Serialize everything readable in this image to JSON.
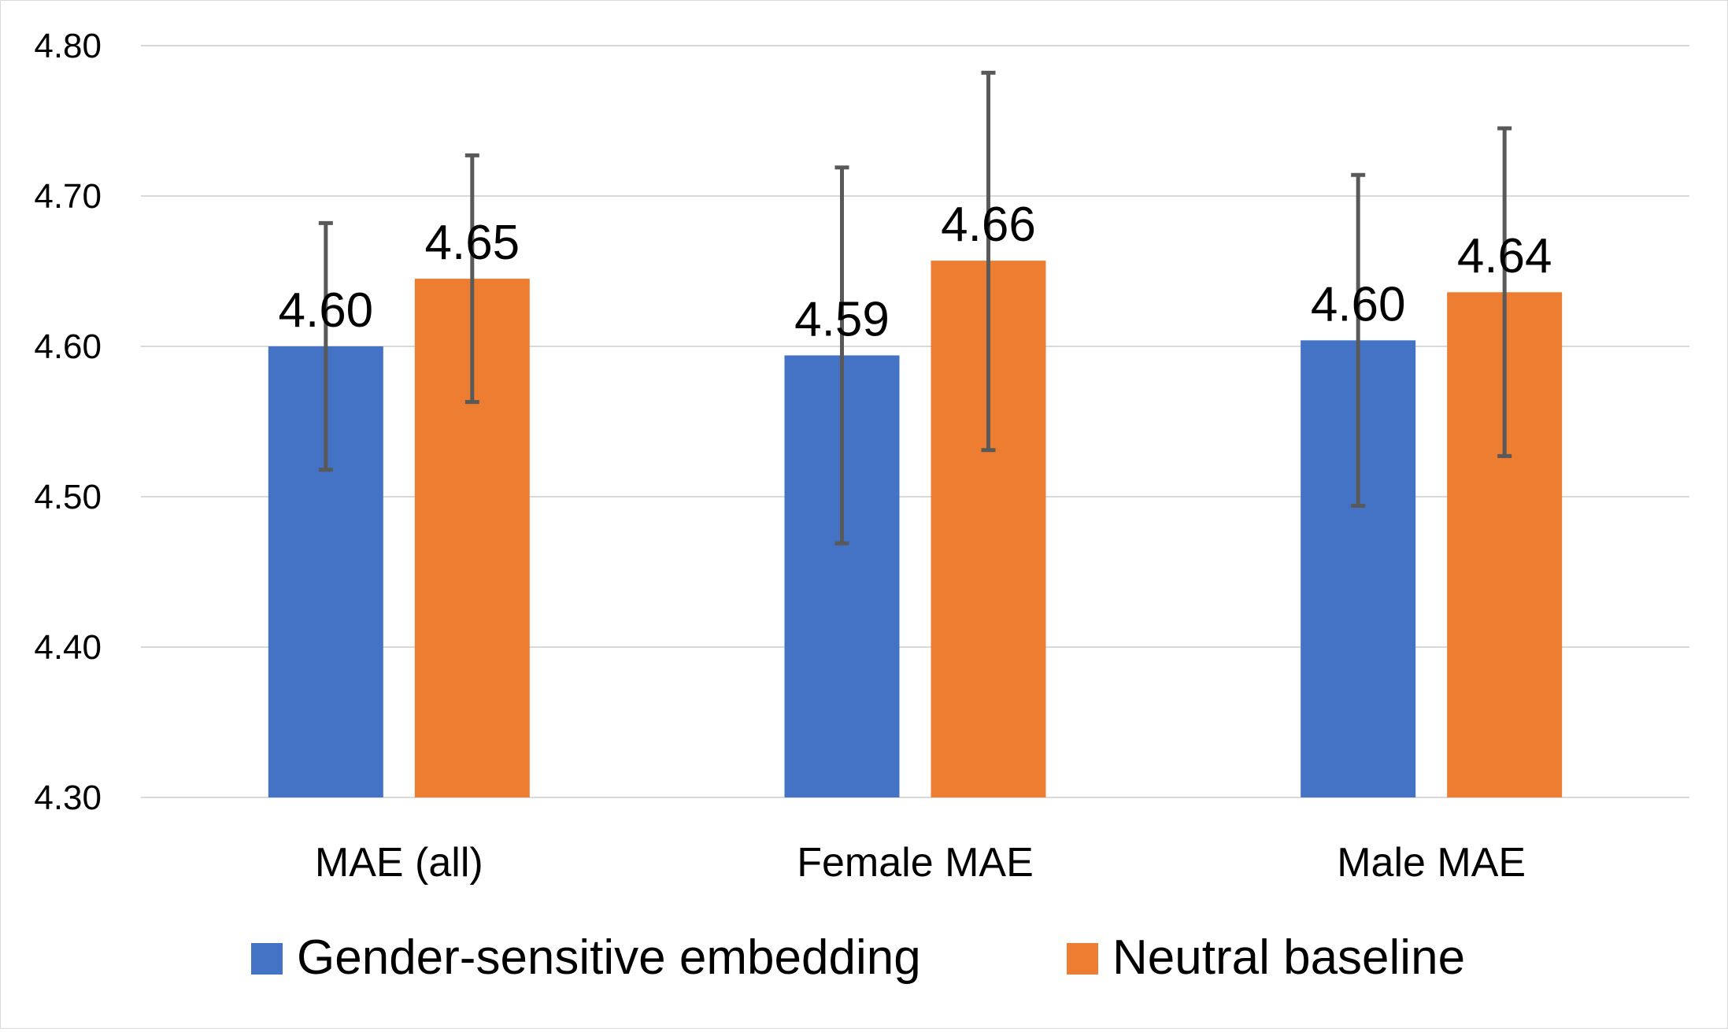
{
  "chart_data": {
    "type": "bar",
    "title": "",
    "xlabel": "",
    "ylabel": "",
    "categories": [
      "MAE (all)",
      "Female MAE",
      "Male MAE"
    ],
    "ylim": [
      4.3,
      4.8
    ],
    "yticks": [
      4.3,
      4.4,
      4.5,
      4.6,
      4.7,
      4.8
    ],
    "ytick_labels": [
      "4.30",
      "4.40",
      "4.50",
      "4.60",
      "4.70",
      "4.80"
    ],
    "grid": true,
    "legend_position": "bottom",
    "series": [
      {
        "name": "Gender-sensitive embedding",
        "color": "#4472c4",
        "values": [
          4.6,
          4.594,
          4.604
        ],
        "value_labels": [
          "4.60",
          "4.59",
          "4.60"
        ],
        "error_low": [
          4.518,
          4.469,
          4.494
        ],
        "error_high": [
          4.682,
          4.719,
          4.714
        ]
      },
      {
        "name": "Neutral baseline",
        "color": "#ed7d31",
        "values": [
          4.645,
          4.657,
          4.636
        ],
        "value_labels": [
          "4.65",
          "4.66",
          "4.64"
        ],
        "error_low": [
          4.563,
          4.531,
          4.527
        ],
        "error_high": [
          4.727,
          4.782,
          4.745
        ]
      }
    ],
    "colors": {
      "gridline": "#d9d9d9",
      "axis_text": "#000000",
      "error_bar": "#595959"
    }
  }
}
